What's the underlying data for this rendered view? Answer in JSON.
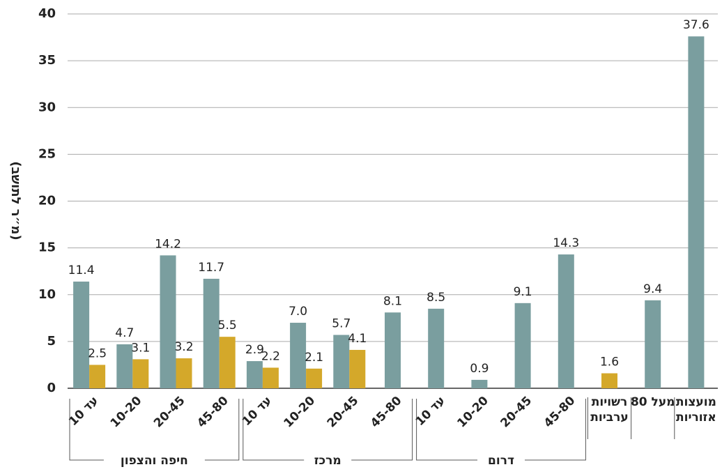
{
  "chart_data": {
    "type": "bar",
    "y_label": "(מ״ר לתושב)",
    "categories": [
      "עד 10",
      "10-20",
      "20-45",
      "45-80",
      "עד 10",
      "10-20",
      "20-45",
      "45-80",
      "עד 10",
      "10-20",
      "20-45",
      "45-80",
      "רשויות ערביות",
      "מעל 80",
      "מועצות אזוריות"
    ],
    "groups": [
      {
        "label": "חיפה והצפון",
        "span": [
          0,
          3
        ]
      },
      {
        "label": "מרכז",
        "span": [
          4,
          7
        ]
      },
      {
        "label": "דרום",
        "span": [
          8,
          11
        ]
      }
    ],
    "series": [
      {
        "color": "#7a9e9f",
        "values": [
          11.4,
          4.7,
          14.2,
          11.7,
          2.9,
          7.0,
          5.7,
          8.1,
          8.5,
          0.9,
          9.1,
          14.3,
          null,
          9.4,
          37.6
        ],
        "value_labels": [
          "11.4",
          "4.7",
          "14.2",
          "11.7",
          "2.9",
          "7.0",
          "5.7",
          "8.1",
          "8.5",
          "0.9",
          "9.1",
          "14.3",
          null,
          "9.4",
          "37.6"
        ]
      },
      {
        "color": "#d4a82a",
        "values": [
          2.5,
          3.1,
          3.2,
          5.5,
          2.2,
          2.1,
          4.1,
          null,
          null,
          null,
          null,
          null,
          1.6,
          null,
          null
        ],
        "value_labels": [
          "2.5",
          "3.1",
          "3.2",
          "5.5",
          "2.2",
          "2.1",
          "4.1",
          null,
          null,
          null,
          null,
          null,
          "1.6",
          null,
          null
        ]
      }
    ],
    "ylim": [
      0,
      40
    ],
    "yticks": [
      0,
      5,
      10,
      15,
      20,
      25,
      30,
      35,
      40
    ],
    "grid": true
  }
}
